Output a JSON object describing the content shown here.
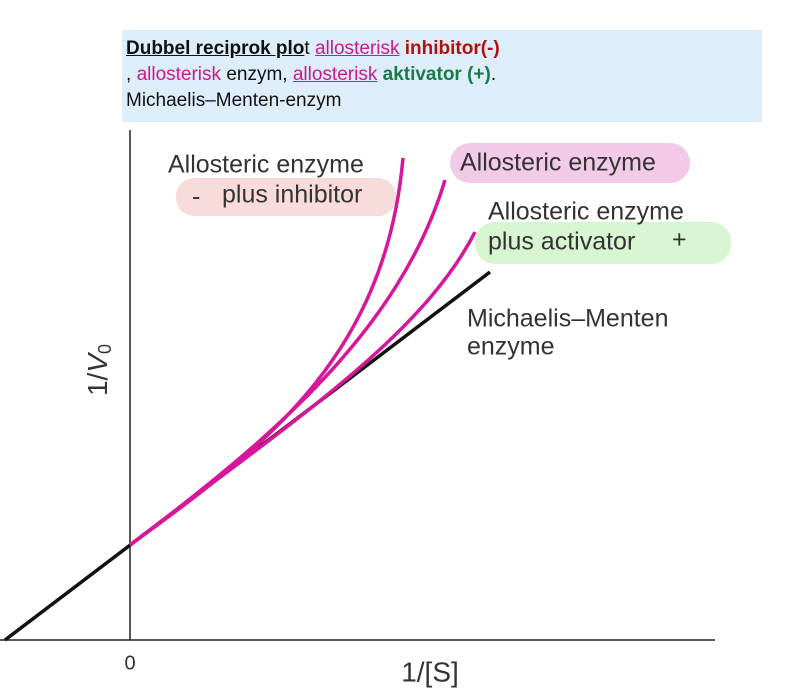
{
  "header": {
    "lines": [
      [
        "Dubbel reciprok plo",
        "t ",
        "allosterisk",
        " ",
        "inhibitor(-)"
      ],
      [
        ", ",
        "allosterisk",
        " enzym, ",
        "allosterisk",
        " ",
        "aktivator (+)",
        "."
      ],
      [
        "Michaelis–Menten-enzym"
      ]
    ]
  },
  "diagram": {
    "labels": {
      "inhibitor": {
        "title": "Allosteric enzyme",
        "sign": "-",
        "text": "plus inhibitor"
      },
      "allosteric": {
        "title": "Allosteric enzyme"
      },
      "activator": {
        "title": "Allosteric enzyme",
        "text": "plus activator",
        "sign": "+"
      },
      "michaelis": {
        "line1": "Michaelis–Menten",
        "line2": "enzyme"
      }
    },
    "x_axis": {
      "label": "1/[S]",
      "origin": "0"
    },
    "y_axis": {
      "prefix": "1/",
      "variable": "V",
      "subscript": "0"
    }
  }
}
